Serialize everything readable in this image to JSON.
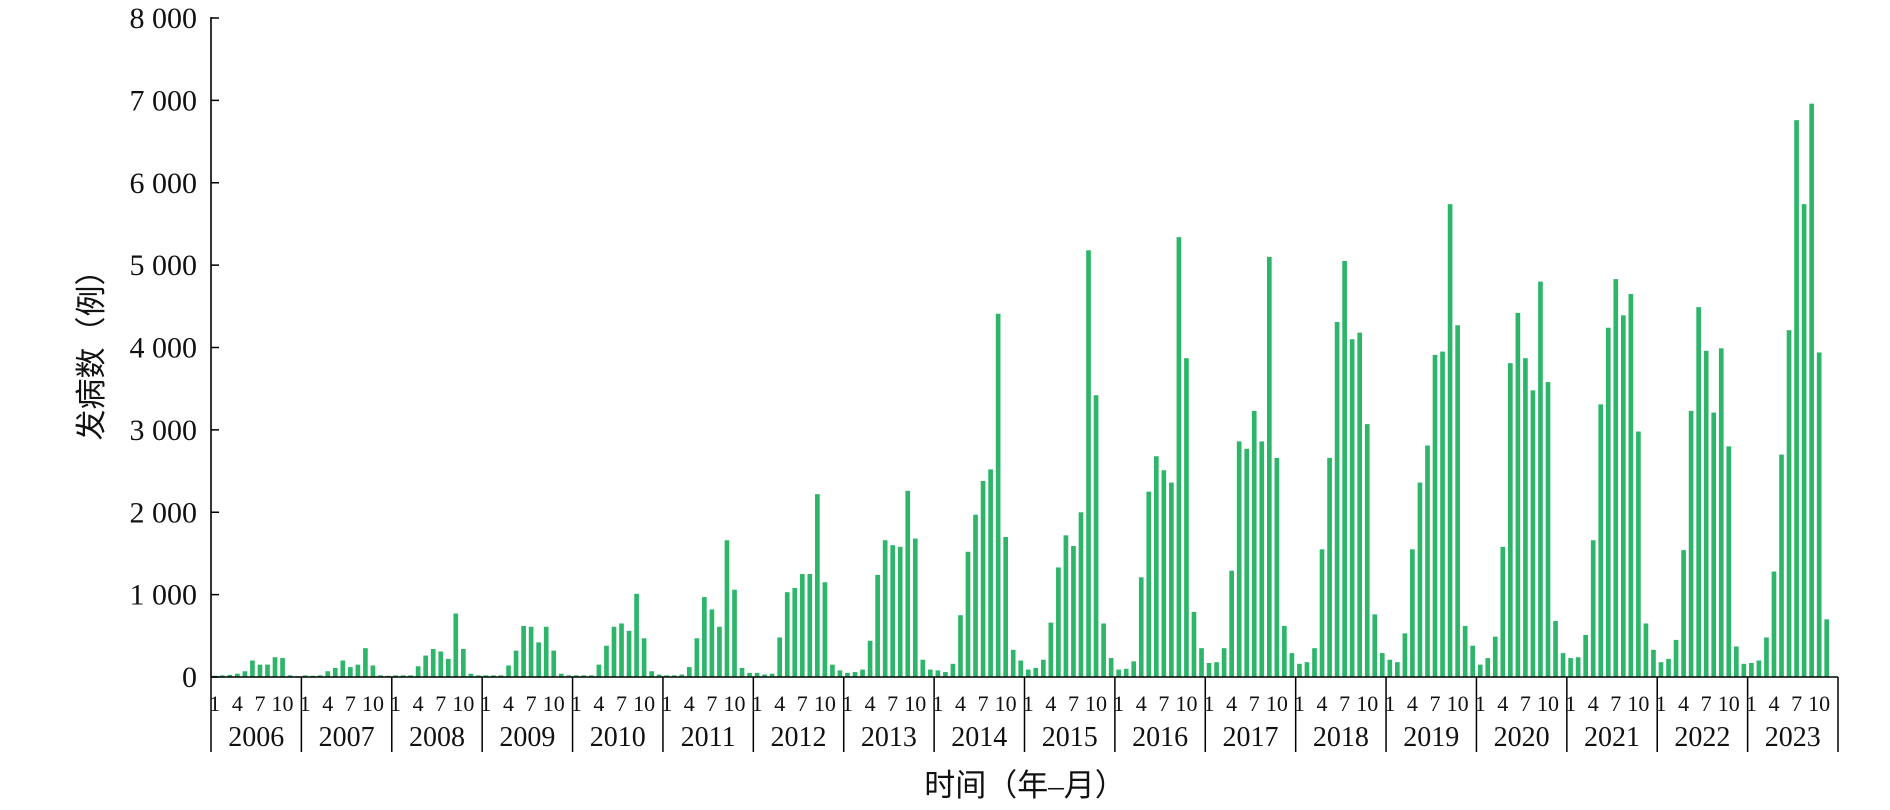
{
  "chart_data": {
    "type": "bar",
    "title": "",
    "xlabel": "时间（年–月）",
    "ylabel": "发病数（例）",
    "ylim": [
      0,
      8000
    ],
    "y_ticks": [
      0,
      1000,
      2000,
      3000,
      4000,
      5000,
      6000,
      7000,
      8000
    ],
    "y_tick_labels": [
      "0",
      "1 000",
      "2 000",
      "3 000",
      "4 000",
      "5 000",
      "6 000",
      "7 000",
      "8 000"
    ],
    "month_tick_labels": [
      "1",
      "4",
      "7",
      "10"
    ],
    "month_tick_positions": [
      1,
      4,
      7,
      10
    ],
    "grid": false,
    "legend": "none",
    "colors": {
      "bar": "#2db56a",
      "axis": "#000000"
    },
    "years": [
      {
        "year": "2006",
        "values": [
          15,
          20,
          25,
          40,
          70,
          200,
          150,
          150,
          240,
          230,
          20,
          10
        ]
      },
      {
        "year": "2007",
        "values": [
          20,
          15,
          20,
          70,
          110,
          200,
          120,
          150,
          350,
          140,
          20,
          15
        ]
      },
      {
        "year": "2008",
        "values": [
          20,
          20,
          20,
          130,
          260,
          340,
          310,
          220,
          770,
          340,
          40,
          20
        ]
      },
      {
        "year": "2009",
        "values": [
          20,
          20,
          20,
          140,
          320,
          620,
          610,
          420,
          610,
          320,
          40,
          20
        ]
      },
      {
        "year": "2010",
        "values": [
          20,
          20,
          20,
          150,
          380,
          610,
          650,
          560,
          1010,
          470,
          70,
          30
        ]
      },
      {
        "year": "2011",
        "values": [
          20,
          20,
          30,
          120,
          470,
          970,
          820,
          610,
          1660,
          1060,
          110,
          50
        ]
      },
      {
        "year": "2012",
        "values": [
          50,
          30,
          40,
          480,
          1030,
          1080,
          1250,
          1250,
          2220,
          1150,
          150,
          80
        ]
      },
      {
        "year": "2013",
        "values": [
          50,
          60,
          90,
          440,
          1240,
          1660,
          1600,
          1580,
          2260,
          1680,
          210,
          90
        ]
      },
      {
        "year": "2014",
        "values": [
          80,
          60,
          160,
          750,
          1520,
          1970,
          2380,
          2520,
          4410,
          1700,
          330,
          200
        ]
      },
      {
        "year": "2015",
        "values": [
          90,
          110,
          210,
          660,
          1330,
          1720,
          1590,
          2000,
          5180,
          3420,
          650,
          230
        ]
      },
      {
        "year": "2016",
        "values": [
          90,
          100,
          190,
          1210,
          2250,
          2680,
          2510,
          2360,
          5340,
          3870,
          790,
          350
        ]
      },
      {
        "year": "2017",
        "values": [
          170,
          180,
          350,
          1290,
          2860,
          2770,
          3230,
          2860,
          5100,
          2660,
          620,
          290
        ]
      },
      {
        "year": "2018",
        "values": [
          160,
          180,
          350,
          1550,
          2660,
          4310,
          5050,
          4100,
          4180,
          3070,
          760,
          290
        ]
      },
      {
        "year": "2019",
        "values": [
          210,
          180,
          530,
          1550,
          2360,
          2810,
          3910,
          3950,
          5740,
          4270,
          620,
          380
        ]
      },
      {
        "year": "2020",
        "values": [
          150,
          230,
          490,
          1580,
          3810,
          4420,
          3870,
          3480,
          4800,
          3580,
          680,
          290
        ]
      },
      {
        "year": "2021",
        "values": [
          230,
          240,
          510,
          1660,
          3310,
          4240,
          4830,
          4390,
          4650,
          2980,
          650,
          330
        ]
      },
      {
        "year": "2022",
        "values": [
          180,
          220,
          450,
          1540,
          3230,
          4490,
          3960,
          3210,
          3990,
          2800,
          370,
          160
        ]
      },
      {
        "year": "2023",
        "values": [
          170,
          200,
          480,
          1280,
          2700,
          4210,
          6760,
          5740,
          6960,
          3940,
          700,
          0
        ]
      }
    ]
  }
}
